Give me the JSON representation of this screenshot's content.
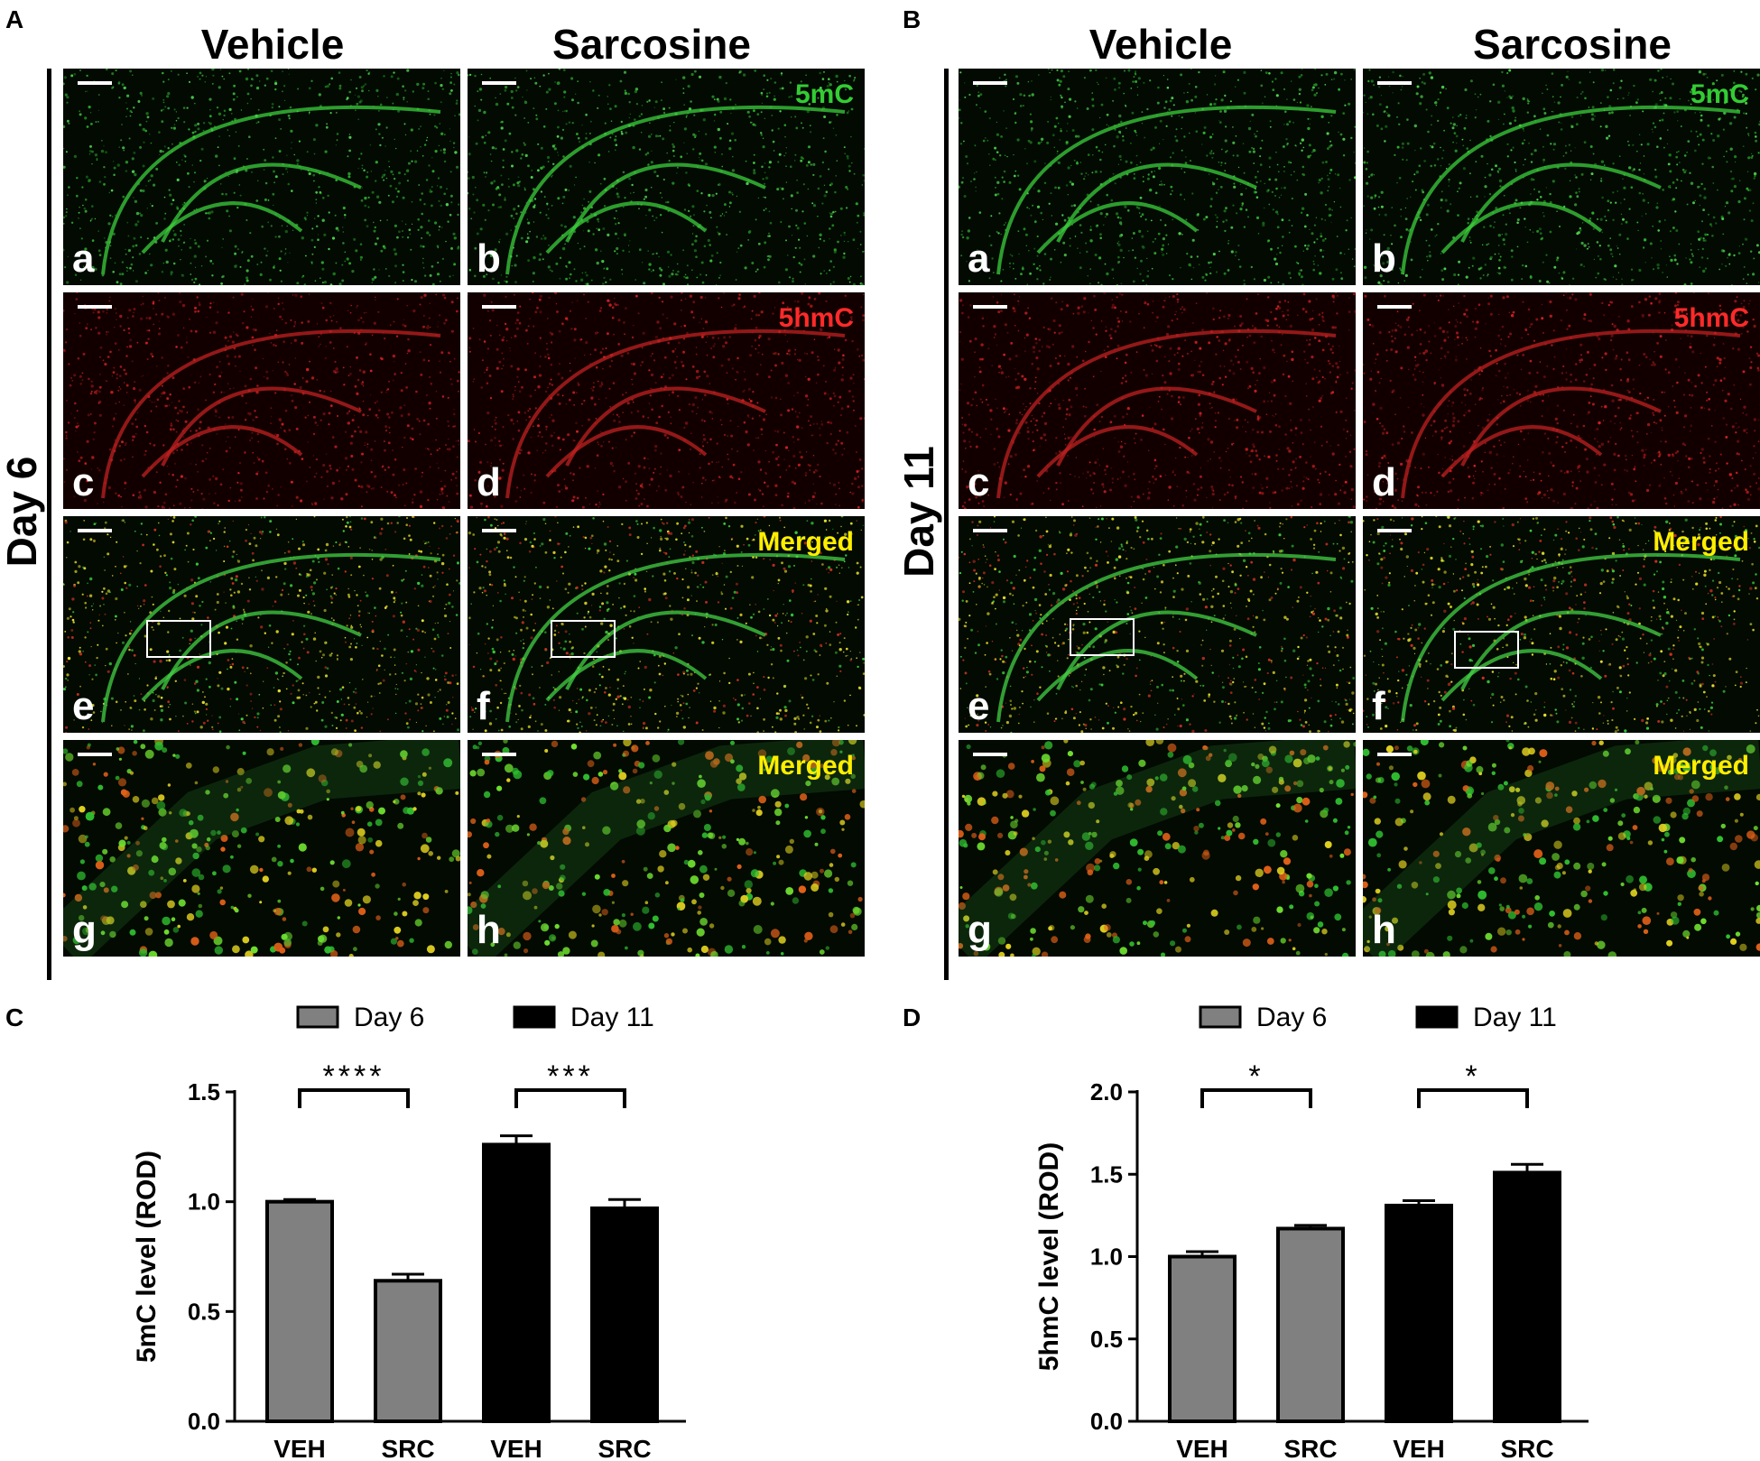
{
  "panels": {
    "A": {
      "letter": "A",
      "columns": [
        "Vehicle",
        "Sarcosine"
      ],
      "row_label": "Day 6",
      "images": [
        {
          "sub": "a",
          "channel": "5mC",
          "color": "#33cc33",
          "kind": "green"
        },
        {
          "sub": "b",
          "channel": "5mC",
          "color": "#33cc33",
          "kind": "green"
        },
        {
          "sub": "c",
          "channel": "5hmC",
          "color": "#ff2a2a",
          "kind": "red"
        },
        {
          "sub": "d",
          "channel": "5hmC",
          "color": "#ff2a2a",
          "kind": "red"
        },
        {
          "sub": "e",
          "channel": "Merged",
          "color": "#ffee00",
          "kind": "merged"
        },
        {
          "sub": "f",
          "channel": "Merged",
          "color": "#ffee00",
          "kind": "merged"
        },
        {
          "sub": "g",
          "channel": "Merged",
          "color": "#ffee00",
          "kind": "zoom"
        },
        {
          "sub": "h",
          "channel": "Merged",
          "color": "#ffee00",
          "kind": "zoom"
        }
      ]
    },
    "B": {
      "letter": "B",
      "columns": [
        "Vehicle",
        "Sarcosine"
      ],
      "row_label": "Day 11",
      "images": [
        {
          "sub": "a",
          "channel": "5mC",
          "color": "#33cc33",
          "kind": "green"
        },
        {
          "sub": "b",
          "channel": "5mC",
          "color": "#33cc33",
          "kind": "green"
        },
        {
          "sub": "c",
          "channel": "5hmC",
          "color": "#ff2a2a",
          "kind": "red"
        },
        {
          "sub": "d",
          "channel": "5hmC",
          "color": "#ff2a2a",
          "kind": "red"
        },
        {
          "sub": "e",
          "channel": "Merged",
          "color": "#ffee00",
          "kind": "merged"
        },
        {
          "sub": "f",
          "channel": "Merged",
          "color": "#ffee00",
          "kind": "merged"
        },
        {
          "sub": "g",
          "channel": "Merged",
          "color": "#ffee00",
          "kind": "zoom"
        },
        {
          "sub": "h",
          "channel": "Merged",
          "color": "#ffee00",
          "kind": "zoom"
        }
      ]
    }
  },
  "chart_data": [
    {
      "panel": "C",
      "type": "bar",
      "ylabel": "5mC level (ROD)",
      "categories": [
        "VEH",
        "SRC",
        "VEH",
        "SRC"
      ],
      "values": [
        1.0,
        0.64,
        1.26,
        0.97
      ],
      "errors": [
        0.01,
        0.03,
        0.04,
        0.04
      ],
      "bar_colors": [
        "#808080",
        "#808080",
        "#000000",
        "#000000"
      ],
      "legend": [
        {
          "label": "Day 6",
          "color": "#808080"
        },
        {
          "label": "Day 11",
          "color": "#000000"
        }
      ],
      "legend_position": "top",
      "ylim": [
        0.0,
        1.5
      ],
      "yticks": [
        "0.0",
        "0.5",
        "1.0",
        "1.5"
      ],
      "significance": [
        {
          "pair": [
            0,
            1
          ],
          "label": "****"
        },
        {
          "pair": [
            2,
            3
          ],
          "label": "***"
        }
      ]
    },
    {
      "panel": "D",
      "type": "bar",
      "ylabel": "5hmC level (ROD)",
      "categories": [
        "VEH",
        "SRC",
        "VEH",
        "SRC"
      ],
      "values": [
        1.0,
        1.17,
        1.31,
        1.51
      ],
      "errors": [
        0.03,
        0.02,
        0.03,
        0.05
      ],
      "bar_colors": [
        "#808080",
        "#808080",
        "#000000",
        "#000000"
      ],
      "legend": [
        {
          "label": "Day 6",
          "color": "#808080"
        },
        {
          "label": "Day 11",
          "color": "#000000"
        }
      ],
      "legend_position": "top",
      "ylim": [
        0.0,
        2.0
      ],
      "yticks": [
        "0.0",
        "0.5",
        "1.0",
        "1.5",
        "2.0"
      ],
      "significance": [
        {
          "pair": [
            0,
            1
          ],
          "label": "*"
        },
        {
          "pair": [
            2,
            3
          ],
          "label": "*"
        }
      ]
    }
  ],
  "chart_letters": {
    "C": "C",
    "D": "D"
  }
}
